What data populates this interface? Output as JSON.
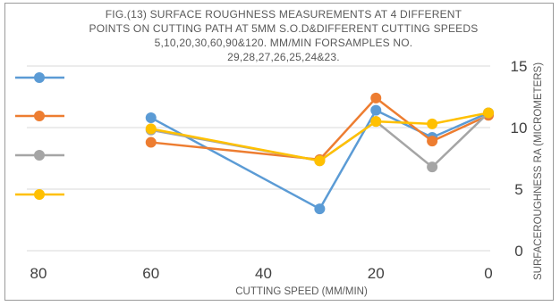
{
  "chart_data": {
    "type": "line",
    "title_lines": [
      "FIG.(13) SURFACE ROUGHNESS MEASUREMENTS AT 4 DIFFERENT",
      "POINTS ON CUTTING PATH AT 5MM S.O.D&DIFFERENT CUTTING SPEEDS",
      "5,10,20,30,60,90&120. MM/MIN FORSAMPLES NO.",
      "29,28,27,26,25,24&23."
    ],
    "xlabel": "CUTTING SPEED (MM/MIN)",
    "ylabel": "SURFACEROUGHNESS RA (MICROMETERS)",
    "x_ticks": [
      "80",
      "60",
      "40",
      "20",
      "0"
    ],
    "y_ticks": [
      "0",
      "5",
      "10",
      "15"
    ],
    "xlim": [
      80,
      0
    ],
    "ylim": [
      0,
      15
    ],
    "x_reversed": true,
    "grid": "horizontal",
    "legend_placement": "left",
    "x": [
      60,
      30,
      20,
      10,
      0
    ],
    "series": [
      {
        "color": "#5b9bd5",
        "values": [
          10.8,
          3.4,
          11.4,
          9.2,
          11.2
        ]
      },
      {
        "color": "#ed7d31",
        "values": [
          8.8,
          7.4,
          12.4,
          8.9,
          11.0
        ]
      },
      {
        "color": "#a5a5a5",
        "values": [
          9.8,
          7.3,
          10.5,
          6.8,
          11.2
        ]
      },
      {
        "color": "#ffc000",
        "values": [
          9.9,
          7.3,
          10.5,
          10.3,
          11.2
        ]
      }
    ]
  }
}
